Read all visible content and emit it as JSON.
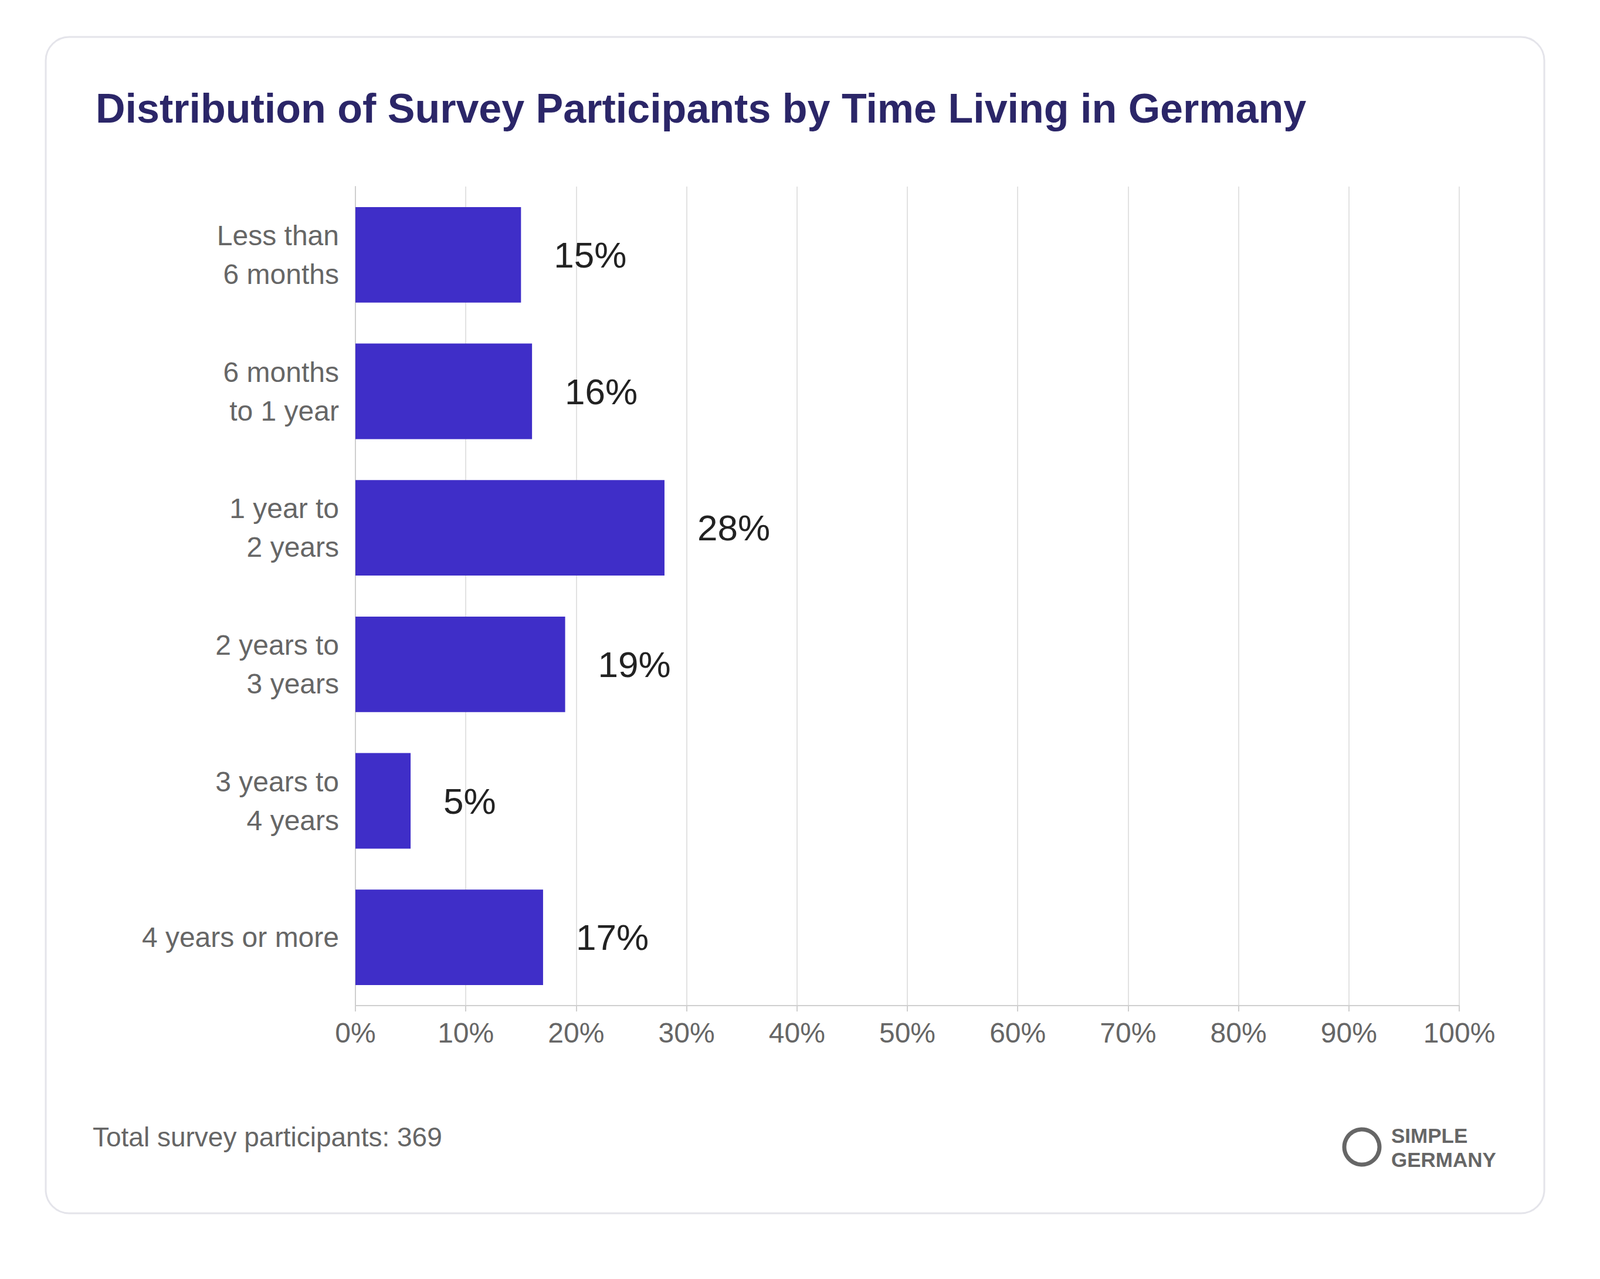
{
  "chart_data": {
    "type": "bar",
    "orientation": "horizontal",
    "title": "Distribution of Survey Participants by Time Living in Germany",
    "categories": [
      "Less than\n6 months",
      "6 months\nto 1 year",
      "1 year to\n2 years",
      "2 years to\n3 years",
      "3 years to\n4 years",
      "4 years or more"
    ],
    "values": [
      15,
      16,
      28,
      19,
      5,
      17
    ],
    "value_labels": [
      "15%",
      "16%",
      "28%",
      "19%",
      "5%",
      "17%"
    ],
    "color": "#3f2ec8",
    "xlim": [
      0,
      100
    ],
    "xticks": [
      {
        "value": 0,
        "label": "0%"
      },
      {
        "value": 10,
        "label": "10%"
      },
      {
        "value": 20,
        "label": "20%"
      },
      {
        "value": 30,
        "label": "30%"
      },
      {
        "value": 40,
        "label": "40%"
      },
      {
        "value": 50,
        "label": "50%"
      },
      {
        "value": 60,
        "label": "60%"
      },
      {
        "value": 70,
        "label": "70%"
      },
      {
        "value": 80,
        "label": "80%"
      },
      {
        "value": 90,
        "label": "90%"
      },
      {
        "value": 100,
        "label": "100%"
      }
    ],
    "grid": true,
    "data_labels": true,
    "annotations": [
      "Total survey participants: 369",
      "SIMPLE\nGERMANY"
    ]
  }
}
